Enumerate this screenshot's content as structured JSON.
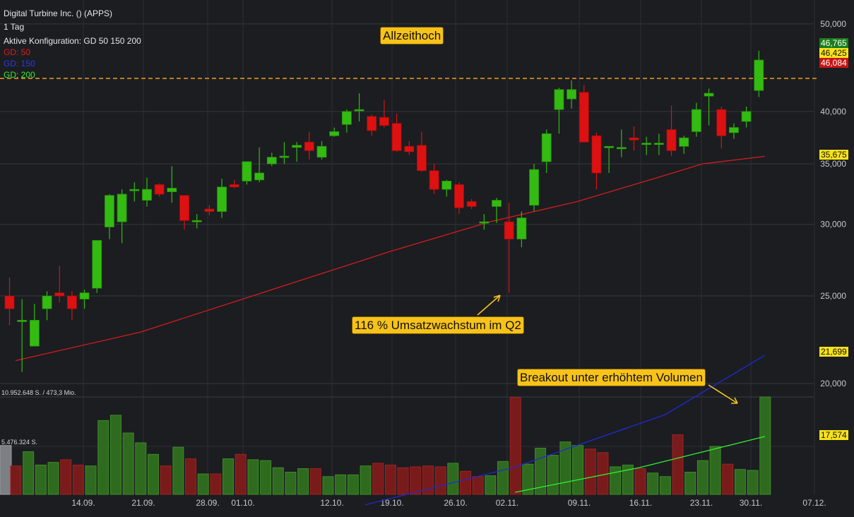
{
  "header": {
    "title": "Digital Turbine Inc. () (APPS)",
    "timeframe": "1 Tag",
    "config": "Aktive Konfiguration: GD 50 150 200",
    "legend": [
      {
        "label": "GD: 50",
        "color": "#e01b1b"
      },
      {
        "label": "GD: 150",
        "color": "#1f2ad6"
      },
      {
        "label": "GD: 200",
        "color": "#33ee33"
      }
    ]
  },
  "annotations": {
    "ath": "Allzeithoch",
    "revenue": "116 % Umsatzwachstum im Q2",
    "breakout": "Breakout unter erhöhtem Volumen"
  },
  "price_tags": [
    {
      "value": "46,765",
      "bg": "#1a7f1a",
      "fg": "#ffffff"
    },
    {
      "value": "46,425",
      "bg": "#f7e21a",
      "fg": "#111111"
    },
    {
      "value": "46,084",
      "bg": "#c81414",
      "fg": "#ffffff"
    },
    {
      "value": "35,675",
      "bg": "#f7e21a",
      "fg": "#111111"
    },
    {
      "value": "21,699",
      "bg": "#f7e21a",
      "fg": "#111111"
    },
    {
      "value": "17,574",
      "bg": "#f7e21a",
      "fg": "#111111"
    }
  ],
  "volume_labels": {
    "top": "10.952.648 S. / 473,3 Mio.",
    "mid": "5.476.324 S."
  },
  "chart_data": {
    "type": "candlestick",
    "price_axis": {
      "scale": "log",
      "ticks": [
        "20,000",
        "25,000",
        "30,000",
        "35,000",
        "40,000",
        "50,000"
      ],
      "tick_values": [
        20,
        25,
        30,
        35,
        40,
        50
      ]
    },
    "x_ticks": [
      "14.09.",
      "21.09.",
      "28.09.",
      "01.10.",
      "12.10.",
      "19.10.",
      "26.10.",
      "02.11.",
      "09.11.",
      "16.11.",
      "23.11.",
      "30.11.",
      "07.12."
    ],
    "ath_level": 43.4,
    "volume_max": 10952648,
    "candles": [
      {
        "o": 25.0,
        "h": 26.2,
        "l": 23.2,
        "c": 24.2
      },
      {
        "o": 23.5,
        "h": 24.8,
        "l": 20.6,
        "c": 23.5
      },
      {
        "o": 22.0,
        "h": 24.5,
        "l": 22.0,
        "c": 23.5
      },
      {
        "o": 24.2,
        "h": 25.3,
        "l": 23.5,
        "c": 25.0
      },
      {
        "o": 25.2,
        "h": 27.0,
        "l": 24.6,
        "c": 25.0
      },
      {
        "o": 25.0,
        "h": 25.3,
        "l": 23.5,
        "c": 24.2
      },
      {
        "o": 24.8,
        "h": 25.4,
        "l": 24.2,
        "c": 25.2
      },
      {
        "o": 25.5,
        "h": 28.8,
        "l": 25.2,
        "c": 28.8
      },
      {
        "o": 29.8,
        "h": 32.4,
        "l": 28.9,
        "c": 32.3
      },
      {
        "o": 30.2,
        "h": 32.8,
        "l": 28.6,
        "c": 32.4
      },
      {
        "o": 32.8,
        "h": 33.4,
        "l": 31.8,
        "c": 32.8
      },
      {
        "o": 31.9,
        "h": 33.8,
        "l": 31.4,
        "c": 32.8
      },
      {
        "o": 33.2,
        "h": 33.3,
        "l": 32.2,
        "c": 32.4
      },
      {
        "o": 32.6,
        "h": 34.8,
        "l": 31.7,
        "c": 32.9
      },
      {
        "o": 32.3,
        "h": 32.3,
        "l": 29.6,
        "c": 30.3
      },
      {
        "o": 30.3,
        "h": 30.8,
        "l": 29.7,
        "c": 30.3
      },
      {
        "o": 31.2,
        "h": 31.5,
        "l": 30.7,
        "c": 31.0
      },
      {
        "o": 31.0,
        "h": 33.7,
        "l": 30.5,
        "c": 33.0
      },
      {
        "o": 33.2,
        "h": 33.6,
        "l": 32.9,
        "c": 33.0
      },
      {
        "o": 33.5,
        "h": 35.2,
        "l": 33.2,
        "c": 35.2
      },
      {
        "o": 33.6,
        "h": 36.5,
        "l": 33.4,
        "c": 34.2
      },
      {
        "o": 35.0,
        "h": 36.0,
        "l": 34.8,
        "c": 35.6
      },
      {
        "o": 35.7,
        "h": 37.0,
        "l": 35.0,
        "c": 35.7
      },
      {
        "o": 36.5,
        "h": 37.0,
        "l": 35.2,
        "c": 36.7
      },
      {
        "o": 37.0,
        "h": 38.0,
        "l": 35.4,
        "c": 36.2
      },
      {
        "o": 35.6,
        "h": 37.1,
        "l": 35.4,
        "c": 36.6
      },
      {
        "o": 37.6,
        "h": 38.4,
        "l": 37.5,
        "c": 38.0
      },
      {
        "o": 38.7,
        "h": 40.2,
        "l": 37.9,
        "c": 40.0
      },
      {
        "o": 40.2,
        "h": 41.9,
        "l": 39.0,
        "c": 40.2
      },
      {
        "o": 39.5,
        "h": 39.7,
        "l": 37.6,
        "c": 38.1
      },
      {
        "o": 39.4,
        "h": 41.2,
        "l": 38.4,
        "c": 38.6
      },
      {
        "o": 38.8,
        "h": 39.8,
        "l": 36.1,
        "c": 36.2
      },
      {
        "o": 36.6,
        "h": 37.1,
        "l": 35.8,
        "c": 36.1
      },
      {
        "o": 36.7,
        "h": 38.0,
        "l": 34.3,
        "c": 34.4
      },
      {
        "o": 34.4,
        "h": 35.0,
        "l": 32.4,
        "c": 32.8
      },
      {
        "o": 32.8,
        "h": 33.6,
        "l": 32.2,
        "c": 33.5
      },
      {
        "o": 33.2,
        "h": 33.4,
        "l": 30.8,
        "c": 31.3
      },
      {
        "o": 31.8,
        "h": 32.0,
        "l": 31.2,
        "c": 31.4
      },
      {
        "o": 30.2,
        "h": 30.8,
        "l": 29.6,
        "c": 30.2
      },
      {
        "o": 31.4,
        "h": 32.1,
        "l": 30.1,
        "c": 31.9
      },
      {
        "o": 30.2,
        "h": 31.7,
        "l": 25.2,
        "c": 28.9
      },
      {
        "o": 28.9,
        "h": 31.0,
        "l": 28.3,
        "c": 30.5
      },
      {
        "o": 31.5,
        "h": 35.0,
        "l": 31.0,
        "c": 34.5
      },
      {
        "o": 35.2,
        "h": 38.2,
        "l": 34.2,
        "c": 37.8
      },
      {
        "o": 40.2,
        "h": 42.5,
        "l": 37.8,
        "c": 42.3
      },
      {
        "o": 41.3,
        "h": 43.3,
        "l": 40.3,
        "c": 42.3
      },
      {
        "o": 42.0,
        "h": 42.8,
        "l": 37.0,
        "c": 37.0
      },
      {
        "o": 37.6,
        "h": 37.9,
        "l": 32.8,
        "c": 34.2
      },
      {
        "o": 36.5,
        "h": 36.6,
        "l": 34.2,
        "c": 36.6
      },
      {
        "o": 36.5,
        "h": 38.2,
        "l": 35.6,
        "c": 36.5
      },
      {
        "o": 37.4,
        "h": 38.5,
        "l": 36.2,
        "c": 37.2
      },
      {
        "o": 36.8,
        "h": 37.5,
        "l": 35.8,
        "c": 36.9
      },
      {
        "o": 36.8,
        "h": 37.8,
        "l": 35.8,
        "c": 36.9
      },
      {
        "o": 38.2,
        "h": 40.6,
        "l": 35.7,
        "c": 36.2
      },
      {
        "o": 36.6,
        "h": 37.6,
        "l": 35.9,
        "c": 37.4
      },
      {
        "o": 38.0,
        "h": 40.9,
        "l": 37.5,
        "c": 40.2
      },
      {
        "o": 41.6,
        "h": 42.4,
        "l": 38.6,
        "c": 41.9
      },
      {
        "o": 40.2,
        "h": 40.5,
        "l": 36.4,
        "c": 37.6
      },
      {
        "o": 37.9,
        "h": 38.8,
        "l": 37.3,
        "c": 38.4
      },
      {
        "o": 39.0,
        "h": 40.5,
        "l": 38.4,
        "c": 40.0
      },
      {
        "o": 42.2,
        "h": 46.7,
        "l": 41.5,
        "c": 45.6
      }
    ],
    "volumes": [
      3200000,
      4800000,
      3300000,
      3600000,
      3900000,
      3300000,
      3200000,
      8300000,
      8900000,
      6900000,
      5800000,
      4500000,
      3200000,
      5300000,
      4000000,
      2300000,
      2300000,
      4000000,
      4500000,
      3900000,
      3800000,
      3000000,
      2500000,
      2900000,
      2900000,
      2000000,
      2200000,
      2200000,
      3200000,
      3500000,
      3300000,
      3000000,
      3100000,
      3200000,
      3100000,
      3500000,
      2600000,
      2000000,
      2100000,
      3700000,
      10900000,
      3400000,
      5200000,
      4400000,
      5900000,
      5500000,
      5100000,
      4700000,
      3100000,
      3300000,
      2900000,
      2400000,
      2000000,
      6700000,
      2500000,
      3800000,
      5400000,
      3400000,
      2800000,
      2700000,
      10952648
    ],
    "ma50": [
      [
        0,
        21.2
      ],
      [
        10,
        22.8
      ],
      [
        30,
        28.0
      ],
      [
        38,
        30.2
      ],
      [
        45,
        31.8
      ],
      [
        52,
        34.0
      ],
      [
        55,
        35.0
      ],
      [
        60,
        35.675
      ]
    ],
    "ma150": [
      [
        28,
        13.0
      ],
      [
        40,
        14.8
      ],
      [
        52,
        17.7
      ],
      [
        60,
        21.699
      ]
    ],
    "ma200": [
      [
        40,
        12.9
      ],
      [
        50,
        14.8
      ],
      [
        60,
        17.574
      ]
    ]
  }
}
